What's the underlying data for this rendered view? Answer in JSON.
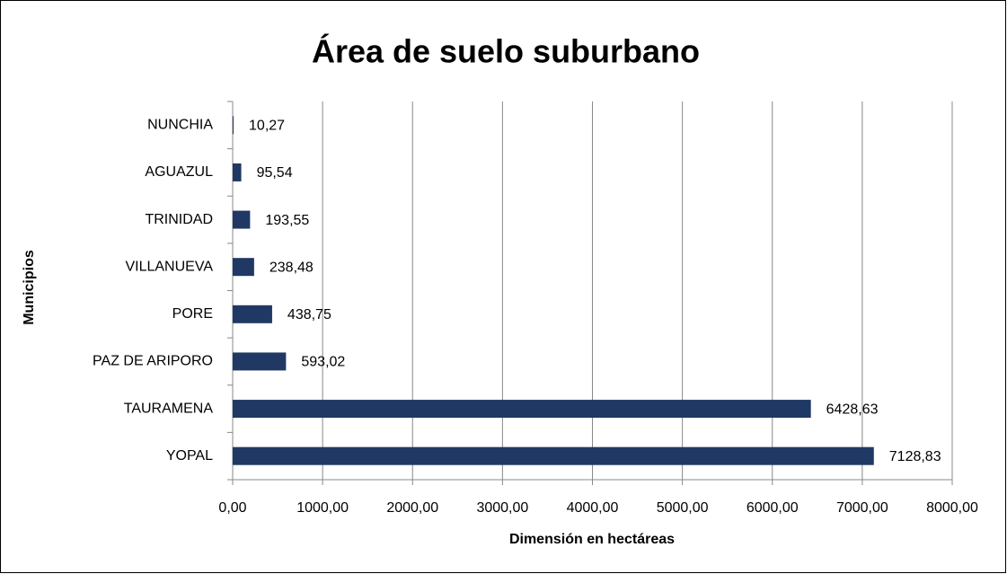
{
  "chart_data": {
    "type": "bar",
    "orientation": "horizontal",
    "title": "Área de suelo suburbano",
    "x_label": "Dimensión en hectáreas",
    "y_label": "Municipios",
    "categories": [
      "NUNCHIA",
      "AGUAZUL",
      "TRINIDAD",
      "VILLANUEVA",
      "PORE",
      "PAZ DE ARIPORO",
      "TAURAMENA",
      "YOPAL"
    ],
    "values": [
      10.27,
      95.54,
      193.55,
      238.48,
      438.75,
      593.02,
      6428.63,
      7128.83
    ],
    "value_labels": [
      "10,27",
      "95,54",
      "193,55",
      "238,48",
      "438,75",
      "593,02",
      "6428,63",
      "7128,83"
    ],
    "color": "#203864",
    "xlim": [
      0,
      8000
    ],
    "xticks": [
      {
        "value": 0,
        "label": "0,00"
      },
      {
        "value": 1000,
        "label": "1000,00"
      },
      {
        "value": 2000,
        "label": "2000,00"
      },
      {
        "value": 3000,
        "label": "3000,00"
      },
      {
        "value": 4000,
        "label": "4000,00"
      },
      {
        "value": 5000,
        "label": "5000,00"
      },
      {
        "value": 6000,
        "label": "6000,00"
      },
      {
        "value": 7000,
        "label": "7000,00"
      },
      {
        "value": 8000,
        "label": "8000,00"
      }
    ],
    "grid": true
  }
}
